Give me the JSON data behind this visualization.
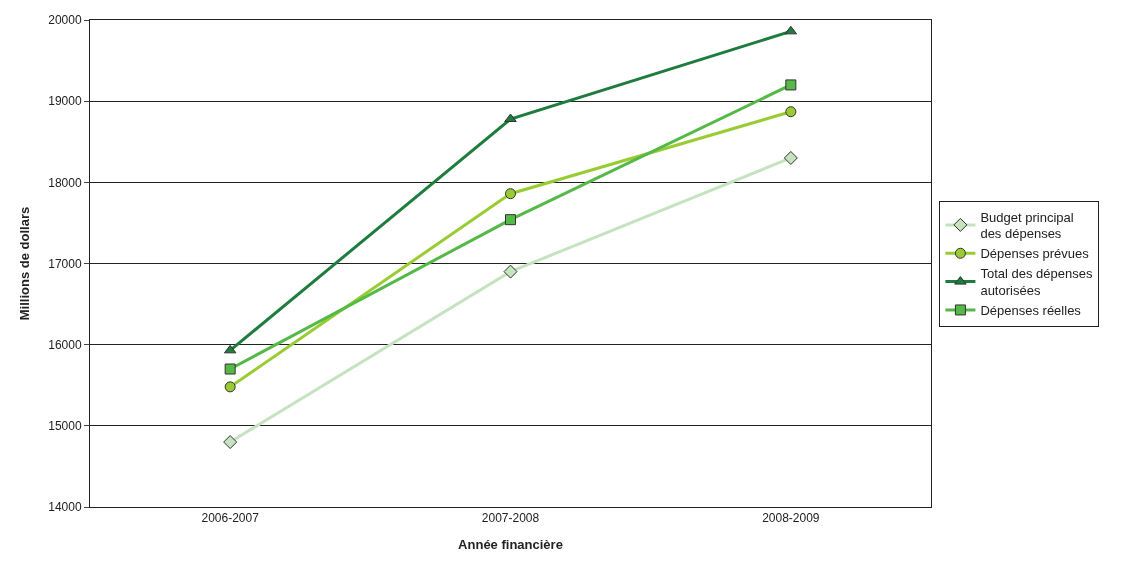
{
  "chart_data": {
    "type": "line",
    "xlabel": "Année financière",
    "ylabel": "Millions de dollars",
    "categories": [
      "2006-2007",
      "2007-2008",
      "2008-2009"
    ],
    "series": [
      {
        "name": "Budget principal\ndes dépenses",
        "color": "#c5e3bf",
        "marker": "diamond",
        "values": [
          14800,
          16900,
          18300
        ]
      },
      {
        "name": "Dépenses prévues",
        "color": "#99cc33",
        "marker": "circle",
        "values": [
          15480,
          17860,
          18870
        ]
      },
      {
        "name": "Total des dépenses\nautorisées",
        "color": "#1e7d3e",
        "marker": "triangle",
        "values": [
          15930,
          18780,
          19860
        ]
      },
      {
        "name": "Dépenses réelles",
        "color": "#55b947",
        "marker": "square",
        "values": [
          15700,
          17540,
          19200
        ]
      }
    ],
    "ylim": [
      14000,
      20000
    ],
    "yticks": [
      14000,
      15000,
      16000,
      17000,
      18000,
      19000,
      20000
    ],
    "grid": "y",
    "legend": "right",
    "line_style": "solid"
  }
}
